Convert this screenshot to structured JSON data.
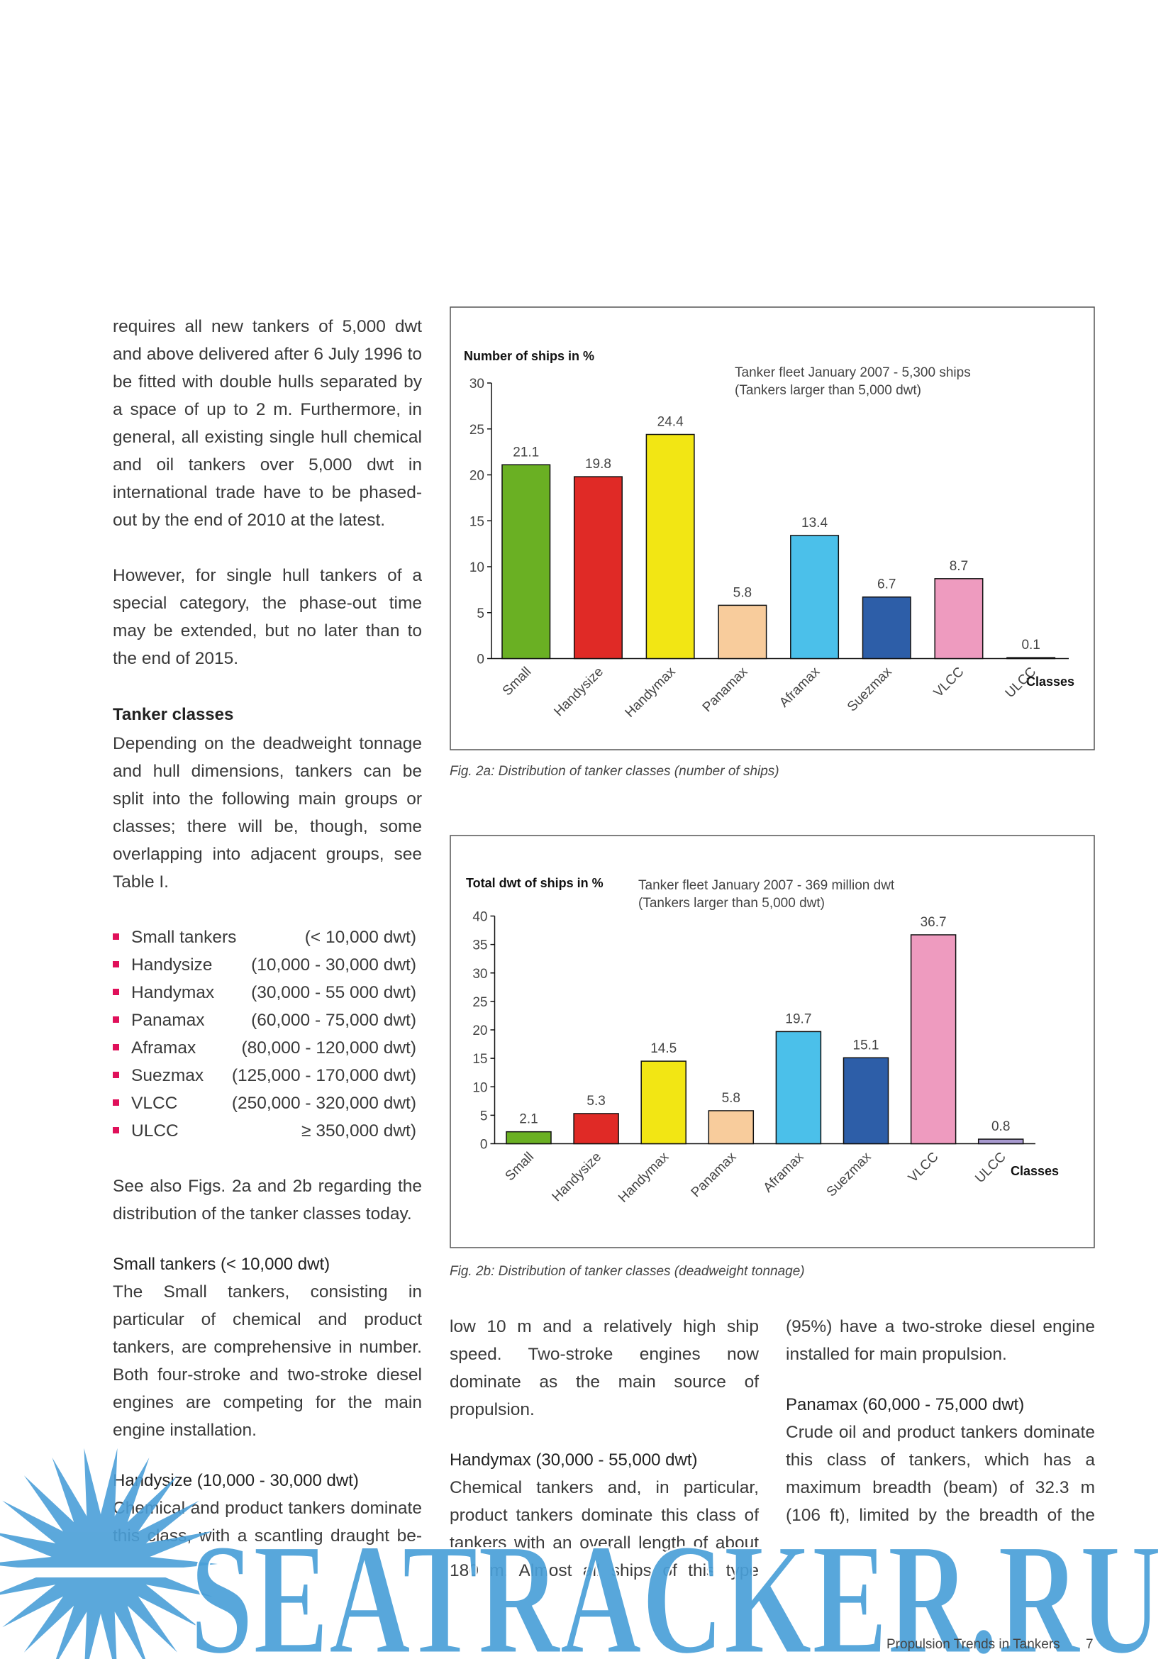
{
  "left": {
    "p1": "requires all new tankers of 5,000 dwt and above delivered after 6 July 1996 to be fitted with double hulls separated by a space of up to 2 m. Furthermore, in general, all existing single hull chemical and oil tankers over 5,000 dwt in international trade have to be phased-out by the end of 2010 at the latest.",
    "p2": "However, for single hull tankers of a special category, the phase-out time may be extended, but no later than to the end of 2015.",
    "heading": "Tanker classes",
    "p3": "Depending on the deadweight tonnage and hull dimensions, tankers can be split into the following main groups or classes; there will be, though, some overlapping into adjacent groups, see Table I.",
    "list": [
      {
        "name": "Small tankers",
        "range": "(< 10,000 dwt)"
      },
      {
        "name": "Handysize",
        "range": "(10,000 - 30,000 dwt)"
      },
      {
        "name": "Handymax",
        "range": "(30,000 - 55 000 dwt)"
      },
      {
        "name": "Panamax",
        "range": "(60,000 - 75,000 dwt)"
      },
      {
        "name": "Aframax",
        "range": "(80,000 - 120,000 dwt)"
      },
      {
        "name": "Suezmax",
        "range": "(125,000 - 170,000 dwt)"
      },
      {
        "name": "VLCC",
        "range": "(250,000 - 320,000 dwt)"
      },
      {
        "name": "ULCC",
        "range": "≥ 350,000 dwt)"
      }
    ],
    "p4": "See also Figs. 2a and 2b regarding the distribution of the tanker classes today.",
    "sub1": "Small tankers (< 10,000 dwt)",
    "p5": "The Small tankers, consisting in particular of chemical and product tankers, are comprehensive in number. Both four-stroke and two-stroke diesel engines are competing for the main engine installation.",
    "sub2": "Handysize (10,000 - 30,000 dwt)",
    "p6": "Chemical and product tankers dominate this class, with a scantling draught be-"
  },
  "middle": {
    "p1": "low 10 m and a relatively high ship speed. Two-stroke engines now dominate as the main source of propulsion.",
    "sub": "Handymax (30,000 - 55,000 dwt)",
    "p2": "Chemical tankers and, in particular, product tankers dominate this class of tankers with an overall length of about 180 m. Almost all ships of this type"
  },
  "right": {
    "p1": "(95%) have a two-stroke diesel engine installed for main propulsion.",
    "sub": "Panamax (60,000 - 75,000 dwt)",
    "p2": "Crude oil and product tankers dominate this class of tankers, which has a maximum breadth (beam) of 32.3 m (106 ft), limited by the breadth of the"
  },
  "chart_data": [
    {
      "type": "bar",
      "ylabel": "Number of ships in %",
      "annotations": [
        "Tanker fleet January 2007 - 5,300 ships",
        "(Tankers larger than 5,000 dwt)"
      ],
      "xlabel": "Classes",
      "categories": [
        "Small",
        "Handysize",
        "Handymax",
        "Panamax",
        "Aframax",
        "Suezmax",
        "VLCC",
        "ULCC"
      ],
      "values": [
        21.1,
        19.8,
        24.4,
        5.8,
        13.4,
        6.7,
        8.7,
        0.1
      ],
      "colors": [
        "#6ab023",
        "#e02a26",
        "#f2e614",
        "#f8cc9c",
        "#4bc0ea",
        "#2d5ea8",
        "#ee9bbf",
        "#999999"
      ],
      "ylim": [
        0,
        30
      ],
      "yticks": [
        0,
        5,
        10,
        15,
        20,
        25,
        30
      ],
      "caption": "Fig. 2a: Distribution of tanker classes (number of ships)"
    },
    {
      "type": "bar",
      "ylabel": "Total dwt of ships in %",
      "annotations": [
        "Tanker fleet January 2007 - 369 million dwt",
        "(Tankers larger than 5,000 dwt)"
      ],
      "xlabel": "Classes",
      "categories": [
        "Small",
        "Handysize",
        "Handymax",
        "Panamax",
        "Aframax",
        "Suezmax",
        "VLCC",
        "ULCC"
      ],
      "values": [
        2.1,
        5.3,
        14.5,
        5.8,
        19.7,
        15.1,
        36.7,
        0.8
      ],
      "colors": [
        "#6ab023",
        "#e02a26",
        "#f2e614",
        "#f8cc9c",
        "#4bc0ea",
        "#2d5ea8",
        "#ee9bbf",
        "#a89ad0"
      ],
      "ylim": [
        0,
        40
      ],
      "yticks": [
        0,
        5,
        10,
        15,
        20,
        25,
        30,
        35,
        40
      ],
      "caption": "Fig. 2b: Distribution of tanker classes (deadweight tonnage)"
    }
  ],
  "footer": {
    "title": "Propulsion Trends in Tankers",
    "page": "7"
  },
  "watermark": "SEATRACKER.RU"
}
